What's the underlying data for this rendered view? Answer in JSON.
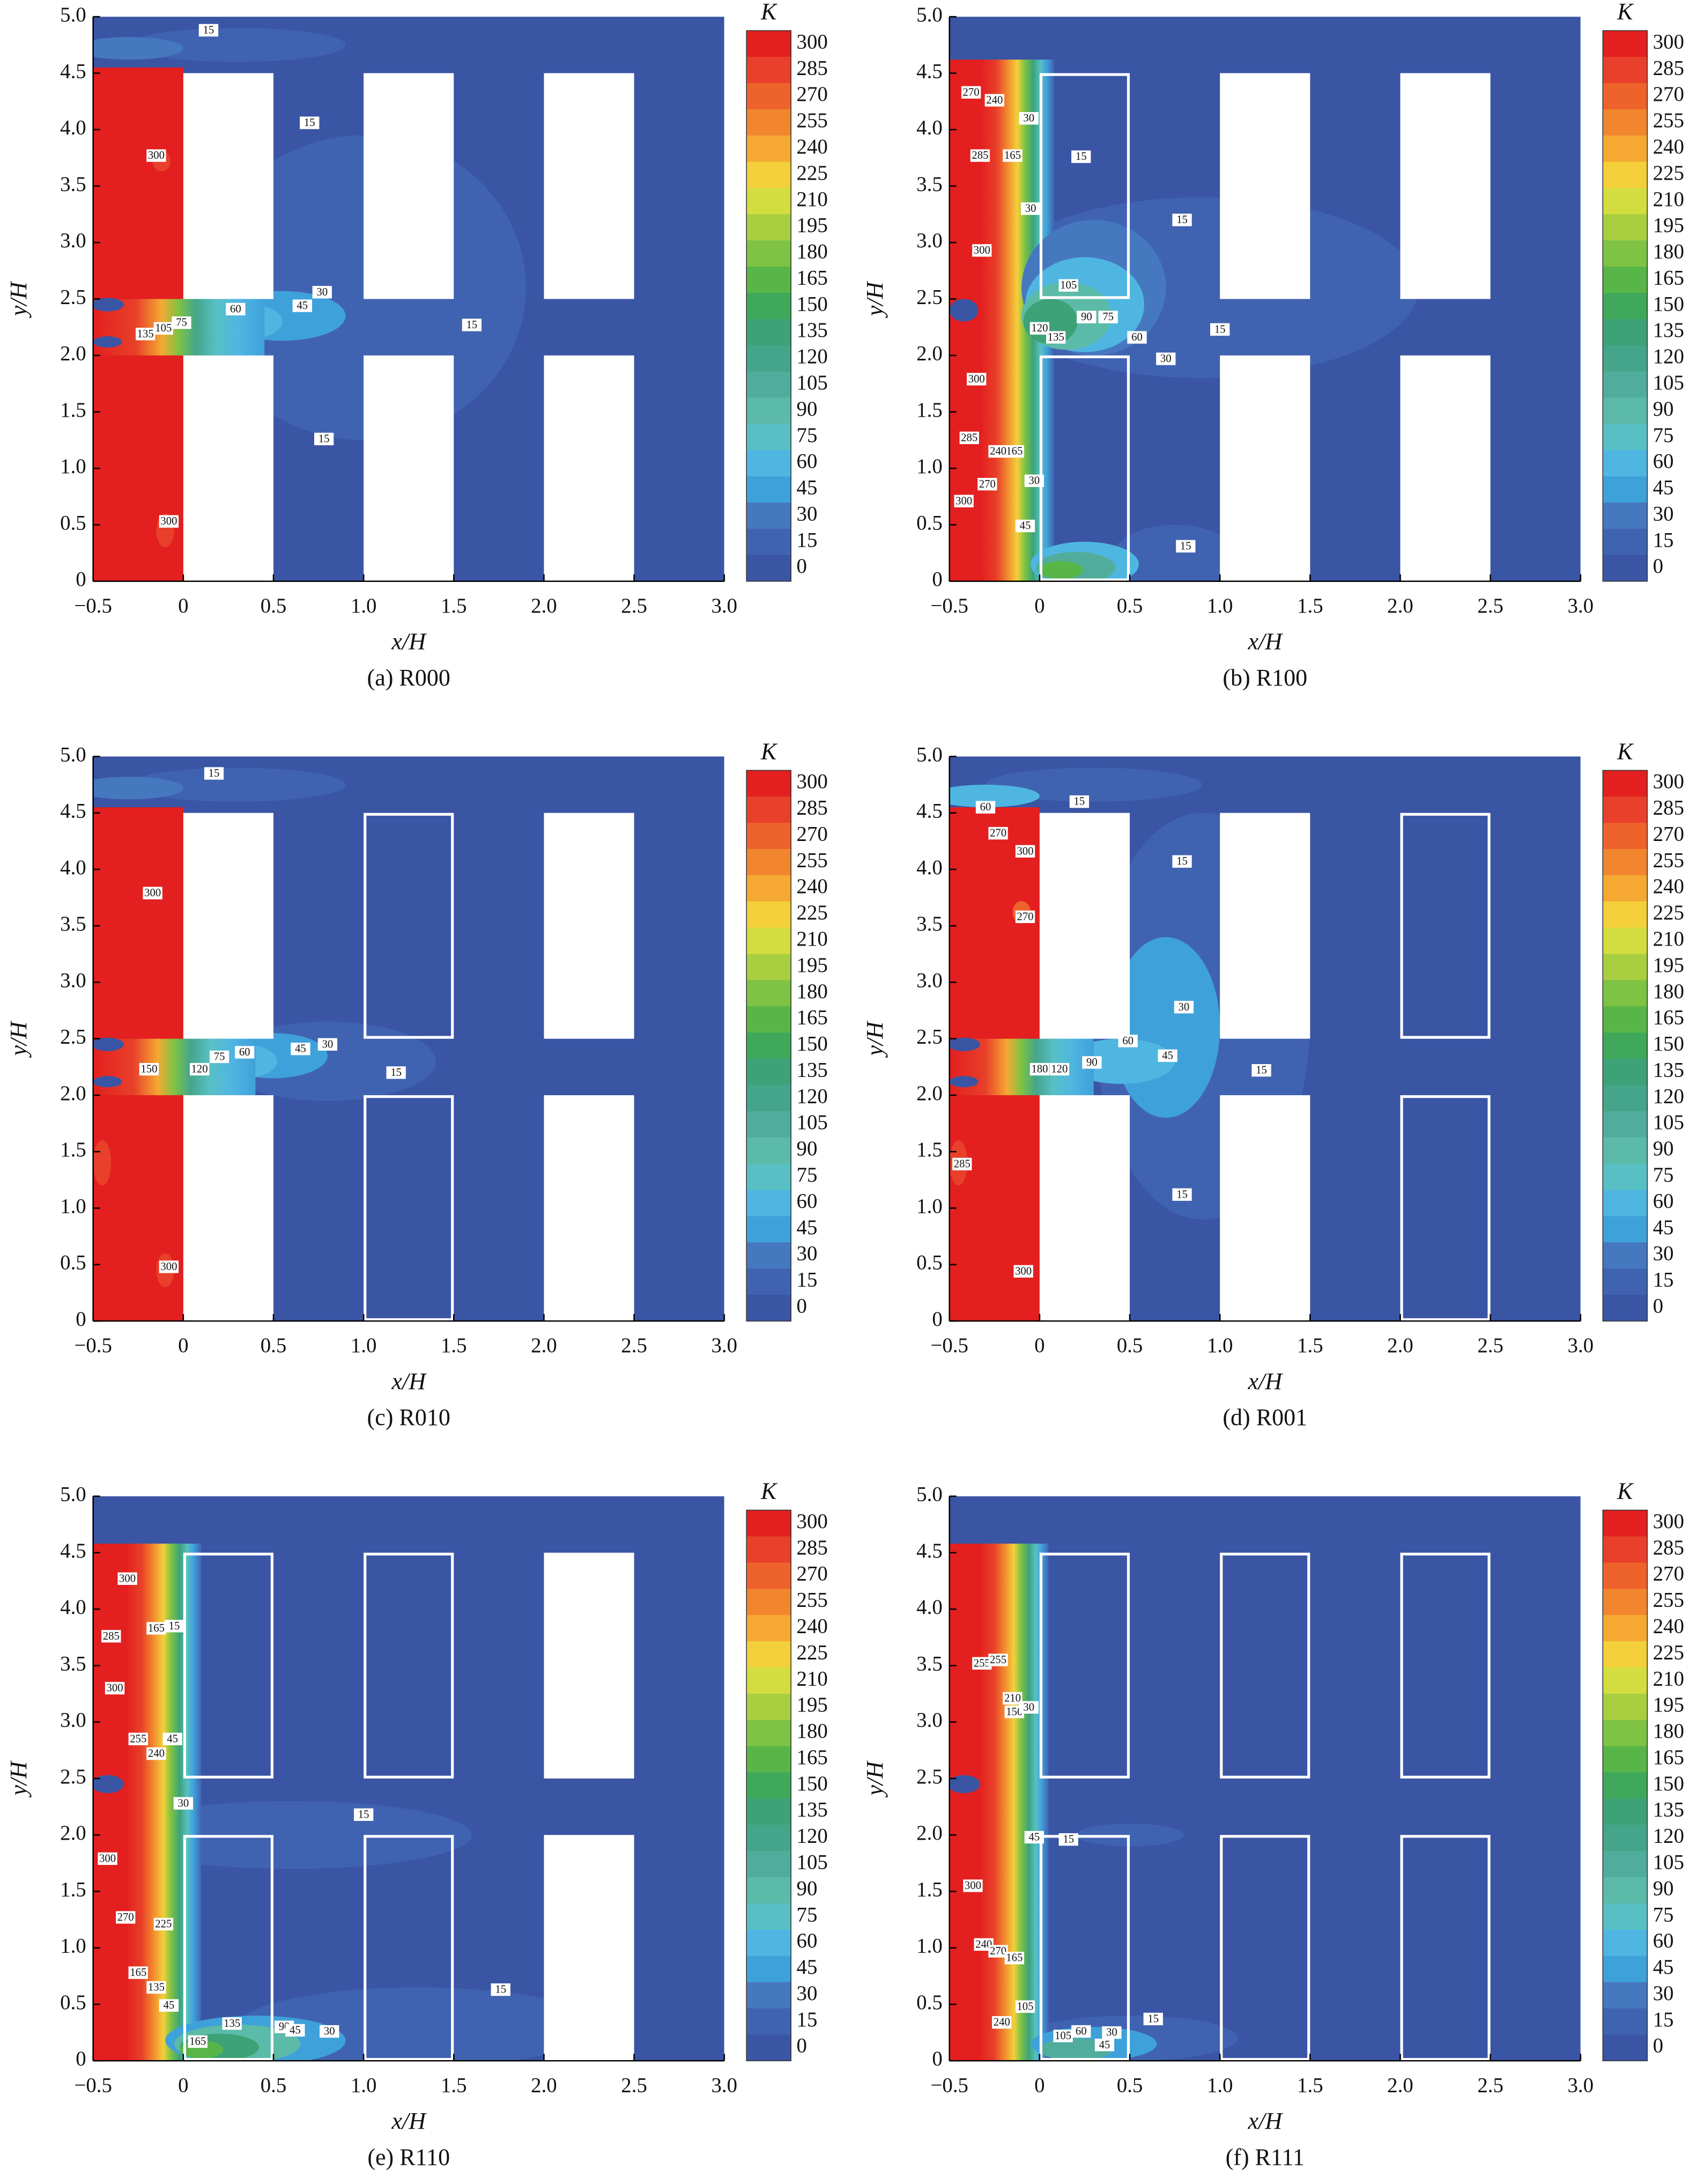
{
  "chart_data": [
    {
      "type": "contour",
      "caption": "(a) R000",
      "xlabel": "x/H",
      "ylabel": "y/H",
      "xlim": [
        -0.5,
        3
      ],
      "ylim": [
        0,
        5
      ],
      "xticks": [
        {
          "value": -0.5,
          "label": "−0.5"
        },
        0,
        0.5,
        {
          "value": 1,
          "label": "1.0"
        },
        1.5,
        {
          "value": 2,
          "label": "2.0"
        },
        2.5,
        {
          "value": 3,
          "label": "3.0"
        }
      ],
      "yticks": [
        0,
        0.5,
        {
          "value": 1,
          "label": "1.0"
        },
        1.5,
        {
          "value": 2,
          "label": "2.0"
        },
        2.5,
        {
          "value": 3,
          "label": "3.0"
        },
        3.5,
        {
          "value": 4,
          "label": "4.0"
        },
        4.5,
        {
          "value": 5,
          "label": "5.0"
        }
      ],
      "colorbar": {
        "title": "K",
        "levels": [
          300,
          285,
          270,
          255,
          240,
          225,
          210,
          195,
          180,
          165,
          150,
          135,
          120,
          105,
          90,
          75,
          60,
          45,
          30,
          15,
          0
        ],
        "colors": [
          "#e31f1f",
          "#e8402a",
          "#ee622c",
          "#f2862e",
          "#f5a932",
          "#f3d03a",
          "#d4dd3f",
          "#a8cf40",
          "#7ec343",
          "#57b647",
          "#3fa85a",
          "#3da277",
          "#44a58b",
          "#51ad9b",
          "#5cbaa8",
          "#58c0c4",
          "#4fb6e2",
          "#3fa1da",
          "#4678bf",
          "#4063b1",
          "#3b55a5"
        ]
      },
      "open_buildings": [
        false,
        false,
        false
      ],
      "contour_labels": [
        15,
        15,
        300,
        135,
        105,
        75,
        60,
        45,
        30,
        15,
        15,
        300
      ]
    },
    {
      "type": "contour",
      "caption": "(b) R100",
      "xlabel": "x/H",
      "ylabel": "y/H",
      "xlim": [
        -0.5,
        3
      ],
      "ylim": [
        0,
        5
      ],
      "xticks": [
        {
          "value": -0.5,
          "label": "−0.5"
        },
        0,
        0.5,
        {
          "value": 1,
          "label": "1.0"
        },
        1.5,
        {
          "value": 2,
          "label": "2.0"
        },
        2.5,
        {
          "value": 3,
          "label": "3.0"
        }
      ],
      "yticks": [
        0,
        0.5,
        {
          "value": 1,
          "label": "1.0"
        },
        1.5,
        {
          "value": 2,
          "label": "2.0"
        },
        2.5,
        {
          "value": 3,
          "label": "3.0"
        },
        3.5,
        {
          "value": 4,
          "label": "4.0"
        },
        4.5,
        {
          "value": 5,
          "label": "5.0"
        }
      ],
      "colorbar": {
        "title": "K",
        "levels": [
          300,
          285,
          270,
          255,
          240,
          225,
          210,
          195,
          180,
          165,
          150,
          135,
          120,
          105,
          90,
          75,
          60,
          45,
          30,
          15,
          0
        ],
        "colors": [
          "#e31f1f",
          "#e8402a",
          "#ee622c",
          "#f2862e",
          "#f5a932",
          "#f3d03a",
          "#d4dd3f",
          "#a8cf40",
          "#7ec343",
          "#57b647",
          "#3fa85a",
          "#3da277",
          "#44a58b",
          "#51ad9b",
          "#5cbaa8",
          "#58c0c4",
          "#4fb6e2",
          "#3fa1da",
          "#4678bf",
          "#4063b1",
          "#3b55a5"
        ]
      },
      "open_buildings": [
        true,
        false,
        false
      ],
      "contour_labels": [
        30,
        240,
        270,
        165,
        15,
        285,
        30,
        15,
        300,
        105,
        90,
        75,
        60,
        15,
        30,
        120,
        135,
        300,
        165,
        240,
        285,
        270,
        30,
        300,
        45,
        15
      ]
    },
    {
      "type": "contour",
      "caption": "(c) R010",
      "xlabel": "x/H",
      "ylabel": "y/H",
      "xlim": [
        -0.5,
        3
      ],
      "ylim": [
        0,
        5
      ],
      "xticks": [
        {
          "value": -0.5,
          "label": "−0.5"
        },
        0,
        0.5,
        {
          "value": 1,
          "label": "1.0"
        },
        1.5,
        {
          "value": 2,
          "label": "2.0"
        },
        2.5,
        {
          "value": 3,
          "label": "3.0"
        }
      ],
      "yticks": [
        0,
        0.5,
        {
          "value": 1,
          "label": "1.0"
        },
        1.5,
        {
          "value": 2,
          "label": "2.0"
        },
        2.5,
        {
          "value": 3,
          "label": "3.0"
        },
        3.5,
        {
          "value": 4,
          "label": "4.0"
        },
        4.5,
        {
          "value": 5,
          "label": "5.0"
        }
      ],
      "colorbar": {
        "title": "K",
        "levels": [
          300,
          285,
          270,
          255,
          240,
          225,
          210,
          195,
          180,
          165,
          150,
          135,
          120,
          105,
          90,
          75,
          60,
          45,
          30,
          15,
          0
        ],
        "colors": [
          "#e31f1f",
          "#e8402a",
          "#ee622c",
          "#f2862e",
          "#f5a932",
          "#f3d03a",
          "#d4dd3f",
          "#a8cf40",
          "#7ec343",
          "#57b647",
          "#3fa85a",
          "#3da277",
          "#44a58b",
          "#51ad9b",
          "#5cbaa8",
          "#58c0c4",
          "#4fb6e2",
          "#3fa1da",
          "#4678bf",
          "#4063b1",
          "#3b55a5"
        ]
      },
      "open_buildings": [
        false,
        true,
        false
      ],
      "contour_labels": [
        15,
        300,
        150,
        120,
        75,
        60,
        45,
        30,
        15,
        300
      ]
    },
    {
      "type": "contour",
      "caption": "(d) R001",
      "xlabel": "x/H",
      "ylabel": "y/H",
      "xlim": [
        -0.5,
        3
      ],
      "ylim": [
        0,
        5
      ],
      "xticks": [
        {
          "value": -0.5,
          "label": "−0.5"
        },
        0,
        0.5,
        {
          "value": 1,
          "label": "1.0"
        },
        1.5,
        {
          "value": 2,
          "label": "2.0"
        },
        2.5,
        {
          "value": 3,
          "label": "3.0"
        }
      ],
      "yticks": [
        0,
        0.5,
        {
          "value": 1,
          "label": "1.0"
        },
        1.5,
        {
          "value": 2,
          "label": "2.0"
        },
        2.5,
        {
          "value": 3,
          "label": "3.0"
        },
        3.5,
        {
          "value": 4,
          "label": "4.0"
        },
        4.5,
        {
          "value": 5,
          "label": "5.0"
        }
      ],
      "colorbar": {
        "title": "K",
        "levels": [
          300,
          285,
          270,
          255,
          240,
          225,
          210,
          195,
          180,
          165,
          150,
          135,
          120,
          105,
          90,
          75,
          60,
          45,
          30,
          15,
          0
        ],
        "colors": [
          "#e31f1f",
          "#e8402a",
          "#ee622c",
          "#f2862e",
          "#f5a932",
          "#f3d03a",
          "#d4dd3f",
          "#a8cf40",
          "#7ec343",
          "#57b647",
          "#3fa85a",
          "#3da277",
          "#44a58b",
          "#51ad9b",
          "#5cbaa8",
          "#58c0c4",
          "#4fb6e2",
          "#3fa1da",
          "#4678bf",
          "#4063b1",
          "#3b55a5"
        ]
      },
      "open_buildings": [
        false,
        false,
        true
      ],
      "contour_labels": [
        60,
        15,
        270,
        300,
        15,
        270,
        30,
        180,
        120,
        90,
        60,
        45,
        15,
        285,
        15,
        300
      ]
    },
    {
      "type": "contour",
      "caption": "(e) R110",
      "xlabel": "x/H",
      "ylabel": "y/H",
      "xlim": [
        -0.5,
        3
      ],
      "ylim": [
        0,
        5
      ],
      "xticks": [
        {
          "value": -0.5,
          "label": "−0.5"
        },
        0,
        0.5,
        {
          "value": 1,
          "label": "1.0"
        },
        1.5,
        {
          "value": 2,
          "label": "2.0"
        },
        2.5,
        {
          "value": 3,
          "label": "3.0"
        }
      ],
      "yticks": [
        0,
        0.5,
        {
          "value": 1,
          "label": "1.0"
        },
        1.5,
        {
          "value": 2,
          "label": "2.0"
        },
        2.5,
        {
          "value": 3,
          "label": "3.0"
        },
        3.5,
        {
          "value": 4,
          "label": "4.0"
        },
        4.5,
        {
          "value": 5,
          "label": "5.0"
        }
      ],
      "colorbar": {
        "title": "K",
        "levels": [
          300,
          285,
          270,
          255,
          240,
          225,
          210,
          195,
          180,
          165,
          150,
          135,
          120,
          105,
          90,
          75,
          60,
          45,
          30,
          15,
          0
        ],
        "colors": [
          "#e31f1f",
          "#e8402a",
          "#ee622c",
          "#f2862e",
          "#f5a932",
          "#f3d03a",
          "#d4dd3f",
          "#a8cf40",
          "#7ec343",
          "#57b647",
          "#3fa85a",
          "#3da277",
          "#44a58b",
          "#51ad9b",
          "#5cbaa8",
          "#58c0c4",
          "#4fb6e2",
          "#3fa1da",
          "#4678bf",
          "#4063b1",
          "#3b55a5"
        ]
      },
      "open_buildings": [
        true,
        true,
        false
      ],
      "contour_labels": [
        300,
        285,
        165,
        15,
        300,
        255,
        240,
        45,
        30,
        15,
        300,
        270,
        225,
        165,
        135,
        45,
        15,
        135,
        90,
        45,
        30,
        165
      ]
    },
    {
      "type": "contour",
      "caption": "(f) R111",
      "xlabel": "x/H",
      "ylabel": "y/H",
      "xlim": [
        -0.5,
        3
      ],
      "ylim": [
        0,
        5
      ],
      "xticks": [
        {
          "value": -0.5,
          "label": "−0.5"
        },
        0,
        0.5,
        {
          "value": 1,
          "label": "1.0"
        },
        1.5,
        {
          "value": 2,
          "label": "2.0"
        },
        2.5,
        {
          "value": 3,
          "label": "3.0"
        }
      ],
      "yticks": [
        0,
        0.5,
        {
          "value": 1,
          "label": "1.0"
        },
        1.5,
        {
          "value": 2,
          "label": "2.0"
        },
        2.5,
        {
          "value": 3,
          "label": "3.0"
        },
        3.5,
        {
          "value": 4,
          "label": "4.0"
        },
        4.5,
        {
          "value": 5,
          "label": "5.0"
        }
      ],
      "colorbar": {
        "title": "K",
        "levels": [
          300,
          285,
          270,
          255,
          240,
          225,
          210,
          195,
          180,
          165,
          150,
          135,
          120,
          105,
          90,
          75,
          60,
          45,
          30,
          15,
          0
        ],
        "colors": [
          "#e31f1f",
          "#e8402a",
          "#ee622c",
          "#f2862e",
          "#f5a932",
          "#f3d03a",
          "#d4dd3f",
          "#a8cf40",
          "#7ec343",
          "#57b647",
          "#3fa85a",
          "#3da277",
          "#44a58b",
          "#51ad9b",
          "#5cbaa8",
          "#58c0c4",
          "#4fb6e2",
          "#3fa1da",
          "#4678bf",
          "#4063b1",
          "#3b55a5"
        ]
      },
      "open_buildings": [
        true,
        true,
        true
      ],
      "contour_labels": [
        255,
        255,
        210,
        150,
        30,
        45,
        15,
        300,
        240,
        270,
        165,
        105,
        15,
        240,
        105,
        60,
        30,
        45
      ]
    }
  ]
}
